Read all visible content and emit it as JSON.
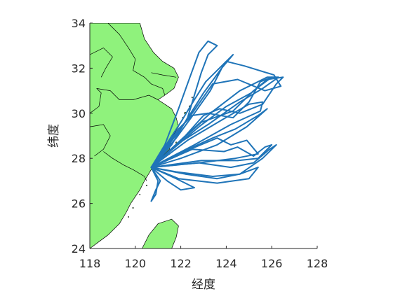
{
  "chart_data": {
    "type": "map",
    "xlabel": "经度",
    "ylabel": "纬度",
    "xlim": [
      118,
      128
    ],
    "ylim": [
      24,
      34
    ],
    "xticks": [
      118,
      120,
      122,
      124,
      126,
      128
    ],
    "yticks": [
      24,
      26,
      28,
      30,
      32,
      34
    ],
    "grid": false,
    "colors": {
      "land": "#8ff27c",
      "border": "#000000",
      "track": "#1f74b8",
      "axis": "#262626"
    },
    "origin": [
      120.7,
      27.6
    ],
    "land": {
      "mainland": [
        [
          118,
          34
        ],
        [
          120.2,
          34
        ],
        [
          120.4,
          33.3
        ],
        [
          120.8,
          32.7
        ],
        [
          121.2,
          32.3
        ],
        [
          121.7,
          32.0
        ],
        [
          121.9,
          31.6
        ],
        [
          121.7,
          31.1
        ],
        [
          121.3,
          30.8
        ],
        [
          121.0,
          30.6
        ],
        [
          121.6,
          30.2
        ],
        [
          121.8,
          29.8
        ],
        [
          121.9,
          29.4
        ],
        [
          121.6,
          28.9
        ],
        [
          121.5,
          28.4
        ],
        [
          121.1,
          28.0
        ],
        [
          120.7,
          27.5
        ],
        [
          120.4,
          27.0
        ],
        [
          120.2,
          26.6
        ],
        [
          119.8,
          26.0
        ],
        [
          119.6,
          25.6
        ],
        [
          119.3,
          25.1
        ],
        [
          118.8,
          24.6
        ],
        [
          118.4,
          24.3
        ],
        [
          118,
          24
        ]
      ],
      "taiwan": [
        [
          120.3,
          24
        ],
        [
          120.6,
          24.6
        ],
        [
          121.0,
          25.1
        ],
        [
          121.6,
          25.3
        ],
        [
          121.9,
          25.0
        ],
        [
          121.8,
          24.5
        ],
        [
          121.6,
          24
        ]
      ],
      "islands": [
        [
          122.2,
          30.0,
          0.12
        ],
        [
          122.4,
          30.3,
          0.1
        ],
        [
          122.1,
          29.8,
          0.08
        ],
        [
          121.9,
          29.2,
          0.08
        ],
        [
          121.8,
          28.7,
          0.07
        ],
        [
          121.5,
          28.2,
          0.07
        ],
        [
          120.9,
          27.3,
          0.06
        ],
        [
          120.5,
          26.8,
          0.06
        ],
        [
          120.2,
          26.4,
          0.05
        ],
        [
          119.9,
          25.8,
          0.06
        ],
        [
          119.7,
          25.4,
          0.05
        ],
        [
          122.5,
          30.7,
          0.06
        ]
      ]
    },
    "borders": [
      [
        [
          118.8,
          34
        ],
        [
          119.3,
          33.5
        ],
        [
          119.7,
          32.9
        ],
        [
          120.0,
          32.4
        ],
        [
          119.9,
          31.9
        ],
        [
          120.4,
          31.6
        ],
        [
          120.7,
          31.3
        ],
        [
          121.2,
          31.1
        ],
        [
          121.3,
          30.8
        ]
      ],
      [
        [
          118,
          32.6
        ],
        [
          118.6,
          32.9
        ],
        [
          119.0,
          32.5
        ],
        [
          118.7,
          32.0
        ],
        [
          118.5,
          31.6
        ]
      ],
      [
        [
          118.3,
          31.1
        ],
        [
          118.9,
          31.0
        ],
        [
          119.3,
          30.6
        ],
        [
          119.9,
          30.6
        ],
        [
          120.6,
          30.8
        ],
        [
          121.0,
          30.6
        ]
      ],
      [
        [
          118,
          29.4
        ],
        [
          118.6,
          29.5
        ],
        [
          118.9,
          29.0
        ],
        [
          118.6,
          28.4
        ],
        [
          118.2,
          28.1
        ]
      ],
      [
        [
          118.6,
          28.3
        ],
        [
          119.0,
          28.0
        ],
        [
          119.5,
          27.7
        ],
        [
          119.9,
          27.5
        ],
        [
          120.4,
          27.2
        ],
        [
          120.5,
          27.0
        ]
      ],
      [
        [
          118,
          30.0
        ],
        [
          118.4,
          30.3
        ],
        [
          118.5,
          30.9
        ],
        [
          118.3,
          31.1
        ]
      ],
      [
        [
          120.7,
          31.8
        ],
        [
          121.2,
          31.7
        ],
        [
          121.8,
          31.6
        ]
      ]
    ],
    "tracks": [
      [
        [
          120.7,
          27.6
        ],
        [
          121.3,
          28.6
        ],
        [
          121.9,
          30.2
        ],
        [
          122.4,
          31.6
        ],
        [
          122.8,
          32.7
        ],
        [
          123.2,
          33.2
        ],
        [
          123.6,
          33.0
        ],
        [
          123.2,
          32.6
        ],
        [
          122.9,
          31.8
        ],
        [
          122.6,
          30.8
        ],
        [
          122.3,
          29.8
        ],
        [
          121.6,
          28.6
        ],
        [
          120.7,
          27.6
        ]
      ],
      [
        [
          120.7,
          27.6
        ],
        [
          121.8,
          28.9
        ],
        [
          122.6,
          30.0
        ],
        [
          123.3,
          31.0
        ],
        [
          123.9,
          32.2
        ],
        [
          124.3,
          32.6
        ],
        [
          123.8,
          32.0
        ],
        [
          123.0,
          30.9
        ],
        [
          122.0,
          29.3
        ],
        [
          120.7,
          27.6
        ]
      ],
      [
        [
          120.7,
          27.6
        ],
        [
          122.0,
          28.8
        ],
        [
          123.3,
          30.0
        ],
        [
          124.6,
          31.0
        ],
        [
          125.8,
          31.6
        ],
        [
          126.3,
          31.6
        ],
        [
          125.6,
          31.1
        ],
        [
          124.6,
          30.5
        ],
        [
          123.2,
          29.5
        ],
        [
          121.8,
          28.6
        ],
        [
          120.7,
          27.6
        ]
      ],
      [
        [
          120.7,
          27.6
        ],
        [
          122.3,
          28.8
        ],
        [
          123.8,
          29.7
        ],
        [
          125.0,
          30.4
        ],
        [
          125.6,
          30.5
        ],
        [
          125.5,
          30.1
        ],
        [
          124.2,
          29.5
        ],
        [
          122.6,
          28.6
        ],
        [
          120.7,
          27.6
        ]
      ],
      [
        [
          120.7,
          27.6
        ],
        [
          122.1,
          28.3
        ],
        [
          123.4,
          28.9
        ],
        [
          124.4,
          29.3
        ],
        [
          125.4,
          29.9
        ],
        [
          125.8,
          30.2
        ],
        [
          124.9,
          29.4
        ],
        [
          123.6,
          28.6
        ],
        [
          122.0,
          28.0
        ],
        [
          120.7,
          27.6
        ]
      ],
      [
        [
          120.7,
          27.6
        ],
        [
          122.4,
          28.4
        ],
        [
          123.6,
          28.9
        ],
        [
          124.2,
          28.6
        ],
        [
          124.9,
          28.8
        ],
        [
          125.4,
          28.2
        ],
        [
          124.4,
          28.0
        ],
        [
          122.8,
          27.8
        ],
        [
          120.7,
          27.6
        ]
      ],
      [
        [
          120.7,
          27.6
        ],
        [
          122.8,
          27.8
        ],
        [
          124.2,
          27.6
        ],
        [
          125.2,
          27.8
        ],
        [
          125.9,
          28.4
        ],
        [
          126.2,
          28.6
        ],
        [
          125.6,
          28.0
        ],
        [
          124.6,
          27.3
        ],
        [
          123.4,
          27.2
        ],
        [
          121.8,
          27.4
        ],
        [
          120.7,
          27.6
        ]
      ],
      [
        [
          120.7,
          27.6
        ],
        [
          122.2,
          27.3
        ],
        [
          123.6,
          27.1
        ],
        [
          124.6,
          27.3
        ],
        [
          125.4,
          27.6
        ],
        [
          125.0,
          27.1
        ],
        [
          123.6,
          26.9
        ],
        [
          121.9,
          27.1
        ],
        [
          120.7,
          27.6
        ]
      ],
      [
        [
          120.7,
          27.6
        ],
        [
          121.4,
          27.0
        ],
        [
          122.0,
          26.6
        ],
        [
          122.6,
          26.7
        ],
        [
          121.8,
          27.1
        ],
        [
          120.7,
          27.6
        ]
      ],
      [
        [
          120.7,
          27.6
        ],
        [
          121.1,
          27.0
        ],
        [
          120.9,
          26.6
        ],
        [
          120.7,
          26.1
        ],
        [
          120.9,
          26.4
        ],
        [
          121.0,
          27.0
        ],
        [
          120.7,
          27.6
        ]
      ],
      [
        [
          120.7,
          27.6
        ],
        [
          122.2,
          29.0
        ],
        [
          123.0,
          29.9
        ],
        [
          123.7,
          30.2
        ],
        [
          124.6,
          30.0
        ],
        [
          125.6,
          30.4
        ],
        [
          126.2,
          31.3
        ],
        [
          126.5,
          31.6
        ],
        [
          125.8,
          31.5
        ],
        [
          125.1,
          30.9
        ],
        [
          124.0,
          30.3
        ],
        [
          122.8,
          29.4
        ],
        [
          120.7,
          27.6
        ]
      ],
      [
        [
          120.7,
          27.6
        ],
        [
          121.9,
          29.3
        ],
        [
          122.5,
          29.9
        ],
        [
          123.2,
          30.0
        ],
        [
          124.3,
          29.8
        ],
        [
          125.0,
          30.5
        ],
        [
          125.5,
          31.4
        ],
        [
          126.0,
          31.6
        ],
        [
          125.2,
          31.0
        ],
        [
          124.3,
          30.1
        ],
        [
          122.9,
          29.6
        ],
        [
          120.7,
          27.6
        ]
      ],
      [
        [
          120.7,
          27.6
        ],
        [
          122.5,
          28.4
        ],
        [
          123.9,
          28.3
        ],
        [
          124.5,
          28.5
        ],
        [
          125.2,
          28.1
        ],
        [
          125.7,
          28.5
        ],
        [
          126.0,
          28.6
        ],
        [
          125.4,
          28.0
        ],
        [
          124.5,
          27.9
        ],
        [
          122.9,
          27.9
        ],
        [
          120.7,
          27.6
        ]
      ],
      [
        [
          120.7,
          27.6
        ],
        [
          122.0,
          29.6
        ],
        [
          122.6,
          30.6
        ],
        [
          123.1,
          31.4
        ],
        [
          124.0,
          32.3
        ],
        [
          124.8,
          32.1
        ],
        [
          126.1,
          31.7
        ],
        [
          126.4,
          31.2
        ],
        [
          125.7,
          31.0
        ],
        [
          124.5,
          31.5
        ],
        [
          123.4,
          31.3
        ],
        [
          122.5,
          30.0
        ],
        [
          120.7,
          27.6
        ]
      ]
    ]
  }
}
